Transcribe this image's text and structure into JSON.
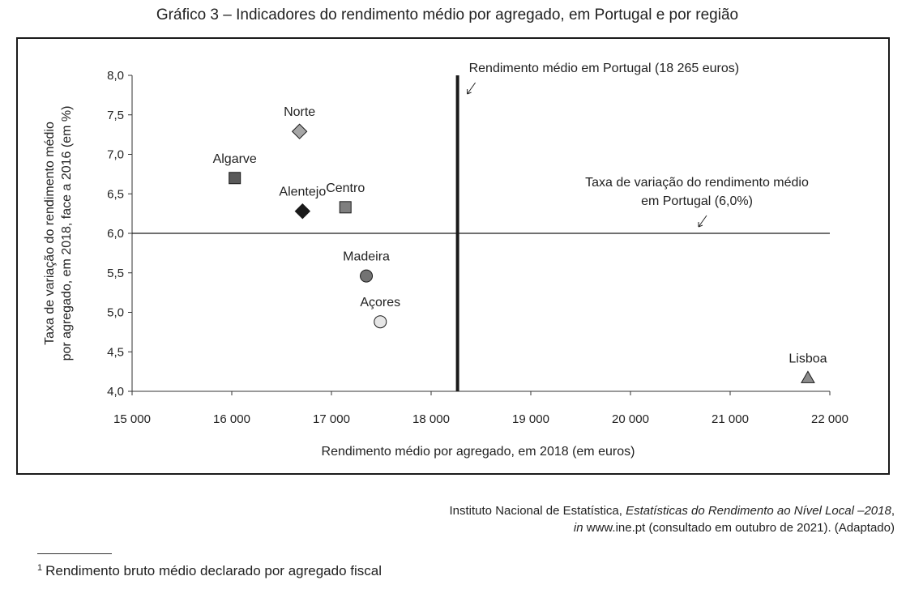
{
  "title": "Gráfico 3 – Indicadores do rendimento médio por agregado, em Portugal e por região",
  "chart_data": {
    "type": "scatter",
    "xlabel": "Rendimento médio por agregado, em 2018 (em euros)",
    "ylabel_line1": "Taxa de variação do rendimento médio",
    "ylabel_line2": "por agregado, em 2018, face a 2016 (em %)",
    "xlim": [
      15000,
      22000
    ],
    "ylim": [
      4.0,
      8.0
    ],
    "x_ticks": [
      15000,
      16000,
      17000,
      18000,
      19000,
      20000,
      21000,
      22000
    ],
    "x_tick_labels": [
      "15 000",
      "16 000",
      "17 000",
      "18 000",
      "19 000",
      "20 000",
      "21 000",
      "22 000"
    ],
    "y_ticks": [
      4.0,
      4.5,
      5.0,
      5.5,
      6.0,
      6.5,
      7.0,
      7.5,
      8.0
    ],
    "y_tick_labels": [
      "4,0",
      "4,5",
      "5,0",
      "5,5",
      "6,0",
      "6,5",
      "7,0",
      "7,5",
      "8,0"
    ],
    "grid": false,
    "reference_lines": {
      "vertical": {
        "x": 18265,
        "label": "Rendimento médio em Portugal (18 265 euros)"
      },
      "horizontal": {
        "y": 6.0,
        "label_line1": "Taxa de variação do rendimento médio",
        "label_line2": "em Portugal (6,0%)"
      }
    },
    "points": [
      {
        "name": "Norte",
        "x": 16680,
        "y": 7.29,
        "marker": "diamond",
        "color": "#a6a6a6"
      },
      {
        "name": "Algarve",
        "x": 16030,
        "y": 6.7,
        "marker": "square",
        "color": "#595959"
      },
      {
        "name": "Alentejo",
        "x": 16710,
        "y": 6.28,
        "marker": "diamond",
        "color": "#1a1a1a"
      },
      {
        "name": "Centro",
        "x": 17140,
        "y": 6.33,
        "marker": "square",
        "color": "#7f7f7f"
      },
      {
        "name": "Madeira",
        "x": 17350,
        "y": 5.46,
        "marker": "circle",
        "color": "#737373"
      },
      {
        "name": "Açores",
        "x": 17490,
        "y": 4.88,
        "marker": "circle",
        "color": "#e6e6e6"
      },
      {
        "name": "Lisboa",
        "x": 21780,
        "y": 4.17,
        "marker": "triangle",
        "color": "#8c8c8c"
      }
    ]
  },
  "source": {
    "prefix": "Instituto Nacional de Estatística, ",
    "publication": "Estatísticas do Rendimento ao Nível Local –2018",
    "suffix1": ",",
    "in_word": "in",
    "line2": " www.ine.pt (consultado em outubro de 2021). (Adaptado)"
  },
  "footnote": {
    "marker": "1",
    "text": "Rendimento bruto médio declarado por agregado fiscal"
  }
}
